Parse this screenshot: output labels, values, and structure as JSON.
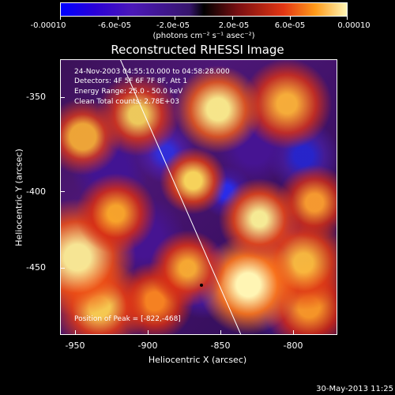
{
  "colorbar": {
    "labels": [
      "-0.00010",
      "-6.0e-05",
      "-2.0e-05",
      "2.0e-05",
      "6.0e-05",
      "0.00010"
    ],
    "units": "(photons cm⁻² s⁻¹ asec⁻²)"
  },
  "title": "Reconstructed RHESSI Image",
  "info": {
    "line1": "24-Nov-2003 04:55:10.000 to 04:58:28.000",
    "line2": "Detectors: 4F 5F 6F 7F 8F, Att 1",
    "line3": "Energy Range: 25.0 - 50.0 keV",
    "line4": "Clean    Total counts: 2.78E+03"
  },
  "peak": {
    "label": "Position of Peak = [-822,-468]"
  },
  "axes": {
    "x_label": "Heliocentric X (arcsec)",
    "y_label": "Heliocentric Y (arcsec)",
    "x_ticks": [
      "-950",
      "-900",
      "-850",
      "-800"
    ],
    "y_ticks": [
      "-350",
      "-400",
      "-450"
    ]
  },
  "footer": "30-May-2013 11:25"
}
